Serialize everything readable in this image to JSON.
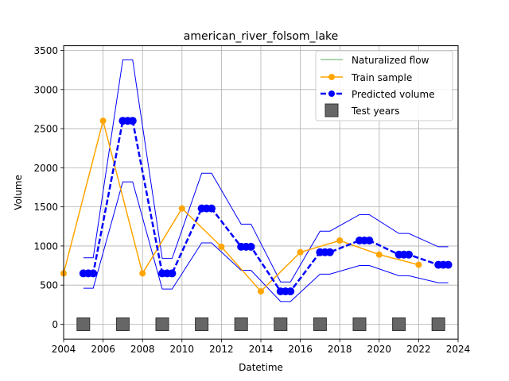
{
  "chart_data": {
    "type": "line",
    "title": "american_river_folsom_lake",
    "xlabel": "Datetime",
    "ylabel": "Volume",
    "xlim": [
      2004,
      2024
    ],
    "ylim": [
      -190,
      3560
    ],
    "x_ticks": [
      2004,
      2006,
      2008,
      2010,
      2012,
      2014,
      2016,
      2018,
      2020,
      2022,
      2024
    ],
    "y_ticks": [
      0,
      500,
      1000,
      1500,
      2000,
      2500,
      3000,
      3500
    ],
    "x_tick_labels": [
      "2004",
      "2006",
      "2008",
      "2010",
      "2012",
      "2014",
      "2016",
      "2018",
      "2020",
      "2022",
      "2024"
    ],
    "y_tick_labels": [
      "0",
      "500",
      "1000",
      "1500",
      "2000",
      "2500",
      "3000",
      "3500"
    ],
    "grid": true,
    "legend_position": "top-right",
    "legend": [
      "Naturalized flow",
      "Train sample",
      "Predicted volume",
      "Test years"
    ],
    "colors": {
      "naturalized": "#8fc98f",
      "train": "#ffa500",
      "predicted": "#0000ff",
      "bounds": "#0000ff",
      "test": "#666666"
    },
    "series": [
      {
        "name": "Train sample",
        "x": [
          2004,
          2006,
          2008,
          2010,
          2012,
          2014,
          2016,
          2018,
          2020,
          2022
        ],
        "y": [
          650,
          2600,
          650,
          1480,
          990,
          420,
          920,
          1070,
          890,
          760
        ]
      },
      {
        "name": "Predicted volume",
        "segments": [
          {
            "x": [
              2005,
              2005.25,
              2005.5
            ],
            "y": [
              650,
              650,
              650
            ]
          },
          {
            "x": [
              2007,
              2007.25,
              2007.5
            ],
            "y": [
              2600,
              2600,
              2600
            ]
          },
          {
            "x": [
              2009,
              2009.25,
              2009.5
            ],
            "y": [
              650,
              650,
              650
            ]
          },
          {
            "x": [
              2011,
              2011.25,
              2011.5
            ],
            "y": [
              1480,
              1480,
              1480
            ]
          },
          {
            "x": [
              2013,
              2013.25,
              2013.5
            ],
            "y": [
              990,
              990,
              990
            ]
          },
          {
            "x": [
              2015,
              2015.25,
              2015.5
            ],
            "y": [
              420,
              420,
              420
            ]
          },
          {
            "x": [
              2017,
              2017.25,
              2017.5
            ],
            "y": [
              920,
              920,
              920
            ]
          },
          {
            "x": [
              2019,
              2019.25,
              2019.5
            ],
            "y": [
              1070,
              1070,
              1070
            ]
          },
          {
            "x": [
              2021,
              2021.25,
              2021.5
            ],
            "y": [
              890,
              890,
              890
            ]
          },
          {
            "x": [
              2023,
              2023.25,
              2023.5
            ],
            "y": [
              760,
              760,
              760
            ]
          }
        ]
      },
      {
        "name": "Upper bound",
        "x": [
          2005,
          2005.5,
          2007,
          2007.5,
          2009,
          2009.5,
          2011,
          2011.5,
          2013,
          2013.5,
          2015,
          2015.5,
          2017,
          2017.5,
          2019,
          2019.5,
          2021,
          2021.5,
          2023,
          2023.5
        ],
        "y": [
          850,
          850,
          3380,
          3380,
          840,
          840,
          1930,
          1930,
          1280,
          1280,
          540,
          540,
          1190,
          1190,
          1400,
          1400,
          1160,
          1160,
          990,
          990
        ]
      },
      {
        "name": "Lower bound",
        "x": [
          2005,
          2005.5,
          2007,
          2007.5,
          2009,
          2009.5,
          2011,
          2011.5,
          2013,
          2013.5,
          2015,
          2015.5,
          2017,
          2017.5,
          2019,
          2019.5,
          2021,
          2021.5,
          2023,
          2023.5
        ],
        "y": [
          460,
          460,
          1820,
          1820,
          450,
          450,
          1040,
          1040,
          690,
          690,
          290,
          290,
          640,
          640,
          750,
          750,
          620,
          620,
          530,
          530
        ]
      },
      {
        "name": "Test years",
        "x": [
          2005,
          2007,
          2009,
          2011,
          2013,
          2015,
          2017,
          2019,
          2021,
          2023
        ],
        "y": [
          0,
          0,
          0,
          0,
          0,
          0,
          0,
          0,
          0,
          0
        ]
      }
    ]
  }
}
